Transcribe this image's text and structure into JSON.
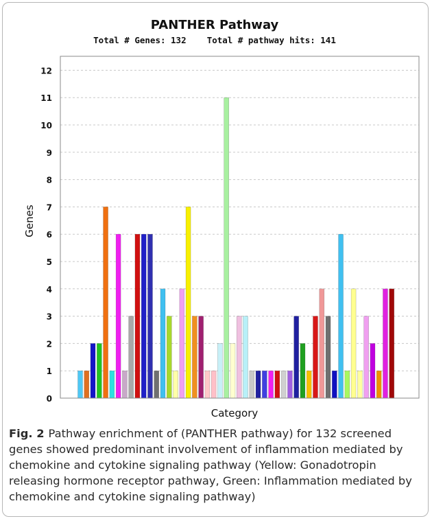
{
  "chart_data": {
    "type": "bar",
    "title": "PANTHER Pathway",
    "subtitle": "Total # Genes: 132    Total # pathway hits: 141",
    "xlabel": "Category",
    "ylabel": "Genes",
    "ylim": [
      0,
      12.5
    ],
    "yticks": [
      0,
      1,
      2,
      3,
      4,
      5,
      6,
      7,
      8,
      9,
      10,
      11,
      12
    ],
    "grid": true,
    "values": [
      1,
      1,
      2,
      2,
      7,
      1,
      6,
      1,
      3,
      6,
      6,
      6,
      1,
      4,
      3,
      1,
      4,
      7,
      3,
      3,
      1,
      1,
      2,
      11,
      2,
      3,
      3,
      1,
      1,
      1,
      1,
      1,
      1,
      1,
      3,
      2,
      1,
      3,
      4,
      3,
      1,
      6,
      1,
      4,
      1,
      3,
      2,
      1,
      4,
      4
    ],
    "colors": [
      "#4fc8f5",
      "#e07020",
      "#1515c8",
      "#22c422",
      "#f07010",
      "#2ce0e0",
      "#f020f0",
      "#c8a8c8",
      "#a8a8a8",
      "#d01010",
      "#2020c8",
      "#3030b0",
      "#707070",
      "#40c0f0",
      "#a8d82c",
      "#ffffa8",
      "#f0a0f0",
      "#f8f000",
      "#f09020",
      "#a02070",
      "#ffc8c8",
      "#ffc0c8",
      "#c8f0f8",
      "#a8f0a0",
      "#ffffd0",
      "#f0c0e0",
      "#b8f0f8",
      "#c8c8c8",
      "#2020a0",
      "#4040e0",
      "#f020f0",
      "#d01010",
      "#d0d0d0",
      "#a060e0",
      "#2020a0",
      "#20a020",
      "#f8c000",
      "#d81818",
      "#f09898",
      "#707070",
      "#1010c0",
      "#40c0f0",
      "#a8f860",
      "#ffff90",
      "#ffffa0",
      "#f0a0f0",
      "#c000e0",
      "#f09000",
      "#e020e0",
      "#a00808"
    ]
  },
  "caption": {
    "label": "Fig. 2",
    "text": "Pathway enrichment of (PANTHER pathway) for 132 screened genes showed predominant involvement of inflammation mediated by chemokine and cytokine signaling pathway (Yellow: Gonadotropin releasing hormone receptor pathway, Green: Inflammation mediated by chemokine and cytokine signaling pathway)"
  }
}
